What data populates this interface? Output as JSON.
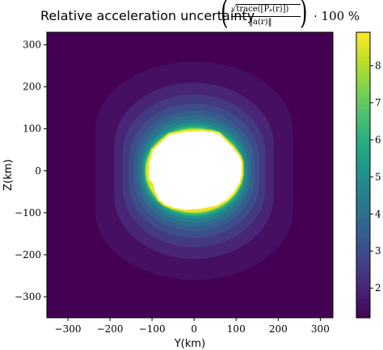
{
  "chart_data": {
    "type": "heatmap",
    "title": "Relative acceleration uncertainty",
    "title_formula": {
      "numerator": "√trace([Pₐ(r)])",
      "denominator": "‖a(r)‖",
      "tail": "· 100 %"
    },
    "xlabel": "Y(km)",
    "ylabel": "Z(km)",
    "xlim": [
      -350,
      330
    ],
    "ylim": [
      -350,
      330
    ],
    "xticks": [
      -300,
      -200,
      -100,
      0,
      100,
      200,
      300
    ],
    "yticks": [
      -300,
      -200,
      -100,
      0,
      100,
      200,
      300
    ],
    "colorbar": {
      "colormap": "viridis",
      "range": [
        1.2,
        8.9
      ],
      "ticks": [
        "2",
        "3",
        "4",
        "5",
        "6",
        "7",
        "8"
      ],
      "tick_values": [
        2,
        3,
        4,
        5,
        6,
        7,
        8
      ]
    },
    "contours": [
      {
        "level": 1.5,
        "half_width": 235,
        "half_height": 165,
        "straight": 95
      },
      {
        "level": 2.0,
        "half_width": 190,
        "half_height": 150,
        "straight": 60
      },
      {
        "level": 2.5,
        "half_width": 170,
        "half_height": 140,
        "straight": 42
      },
      {
        "level": 3.0,
        "half_width": 155,
        "half_height": 130,
        "straight": 30
      },
      {
        "level": 3.5,
        "half_width": 143,
        "half_height": 122,
        "straight": 22
      },
      {
        "level": 4.0,
        "half_width": 134,
        "half_height": 116,
        "straight": 16
      },
      {
        "level": 4.5,
        "half_width": 128,
        "half_height": 111,
        "straight": 11
      },
      {
        "level": 5.2,
        "half_width": 123,
        "half_height": 107,
        "straight": 7
      },
      {
        "level": 6.2,
        "half_width": 119,
        "half_height": 103,
        "straight": 4
      },
      {
        "level": 7.5,
        "half_width": 116,
        "half_height": 100,
        "straight": 2
      },
      {
        "level": 8.6,
        "half_width": 114,
        "half_height": 98,
        "straight": 1
      }
    ],
    "blank_region": [
      [
        -108,
        20
      ],
      [
        -100,
        50
      ],
      [
        -80,
        70
      ],
      [
        -60,
        88
      ],
      [
        -20,
        95
      ],
      [
        20,
        97
      ],
      [
        45,
        94
      ],
      [
        60,
        90
      ],
      [
        75,
        75
      ],
      [
        95,
        55
      ],
      [
        110,
        35
      ],
      [
        115,
        20
      ],
      [
        115,
        -10
      ],
      [
        110,
        -30
      ],
      [
        95,
        -55
      ],
      [
        80,
        -70
      ],
      [
        55,
        -85
      ],
      [
        20,
        -92
      ],
      [
        -20,
        -95
      ],
      [
        -50,
        -90
      ],
      [
        -70,
        -82
      ],
      [
        -85,
        -70
      ],
      [
        -95,
        -50
      ],
      [
        -100,
        -30
      ],
      [
        -110,
        -20
      ]
    ],
    "background_value": 1.2
  }
}
